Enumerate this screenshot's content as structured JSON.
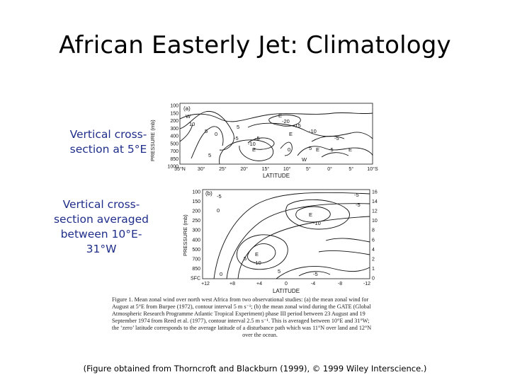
{
  "slide": {
    "title": "African Easterly Jet: Climatology",
    "label_a_lines": [
      "Vertical cross-",
      "section at 5°E"
    ],
    "label_b_lines": [
      "Vertical cross-",
      "section averaged",
      "between 10°E-",
      "31°W"
    ],
    "credit": "(Figure obtained from Thorncroft and Blackburn (1999), © 1999 Wiley Interscience.)"
  },
  "panel_a": {
    "tag": "(a)",
    "y_axis_label": "PRESSURE (mb)",
    "y_ticks": [
      "100",
      "150",
      "200",
      "300",
      "400",
      "500",
      "700",
      "850",
      "1000"
    ],
    "x_ticks": [
      "35°N",
      "30°",
      "25°",
      "20°",
      "15°",
      "10°",
      "5°",
      "0°",
      "5°",
      "10°S"
    ],
    "x_axis_label": "LATITUDE",
    "contour_labels": [
      "W",
      "10",
      "5",
      "0",
      "E",
      "-20",
      "-15",
      "-10",
      "-5",
      "5",
      "-5",
      "-10",
      "-5",
      "5",
      "E",
      "0",
      "E",
      "W",
      "5",
      "E",
      "-5",
      "E"
    ]
  },
  "panel_b": {
    "tag": "(b)",
    "y_axis_label": "PRESSURE (mb)",
    "y_ticks_left": [
      "100",
      "150",
      "200",
      "250",
      "300",
      "400",
      "500",
      "700",
      "850",
      "SFC"
    ],
    "y_ticks_right": [
      "16",
      "14",
      "12",
      "10",
      "8",
      "6",
      "4",
      "2",
      "1",
      "0"
    ],
    "x_ticks": [
      "+12",
      "+8",
      "+4",
      "0",
      "-4",
      "-8",
      "-12"
    ],
    "x_axis_label": "LATITUDE",
    "contour_labels": [
      "-5",
      "-5",
      "-5",
      "0",
      "E",
      "-10",
      "5",
      "E",
      "-10",
      "0",
      "-5",
      "5"
    ]
  },
  "caption": {
    "lines": [
      "Figure 1.   Mean zonal wind over north west Africa from two observational studies: (a) the mean zonal wind for",
      "August at 5°E from Burpee (1972), contour interval 5 m s⁻¹; (b) the mean zonal wind during the GATE (Global",
      "Atmospheric Research Programme Atlantic Tropical Experiment) phase III period between 23 August and 19",
      "September 1974 from Reed et al. (1977), contour interval 2.5 m s⁻¹. This is averaged between 10°E and 31°W;",
      "the ‘zero’ latitude corresponds to the average latitude of a disturbance path which was 11°N over land and 12°N",
      "over the ocean."
    ]
  }
}
